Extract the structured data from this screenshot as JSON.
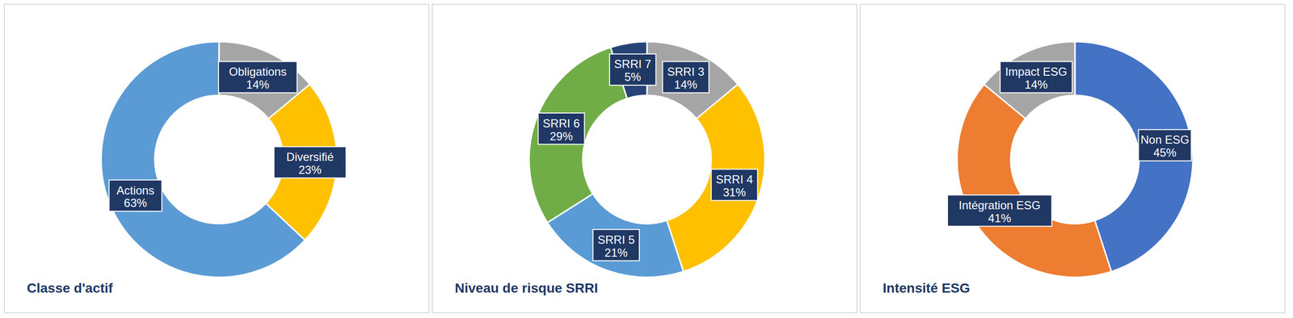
{
  "chart_data": [
    {
      "type": "donut",
      "title": "Classe d'actif",
      "categories": [
        "Obligations",
        "Diversifié",
        "Actions"
      ],
      "values": [
        14,
        23,
        63
      ],
      "value_labels": [
        "14%",
        "23%",
        "63%"
      ],
      "colors": [
        "#a5a5a5",
        "#ffc000",
        "#5b9bd5"
      ],
      "data_labels": true
    },
    {
      "type": "donut",
      "title": "Niveau de risque SRRI",
      "categories": [
        "SRRI 3",
        "SRRI 4",
        "SRRI 5",
        "SRRI 6",
        "SRRI 7"
      ],
      "values": [
        14,
        31,
        21,
        29,
        5
      ],
      "value_labels": [
        "14%",
        "31%",
        "21%",
        "29%",
        "5%"
      ],
      "colors": [
        "#a5a5a5",
        "#ffc000",
        "#5b9bd5",
        "#70ad47",
        "#264478"
      ],
      "data_labels": true
    },
    {
      "type": "donut",
      "title": "Intensité ESG",
      "categories": [
        "Non ESG",
        "Intégration ESG",
        "Impact ESG"
      ],
      "values": [
        45,
        41,
        14
      ],
      "value_labels": [
        "45%",
        "41%",
        "14%"
      ],
      "colors": [
        "#4472c4",
        "#ed7d31",
        "#a5a5a5"
      ],
      "data_labels": true
    }
  ]
}
